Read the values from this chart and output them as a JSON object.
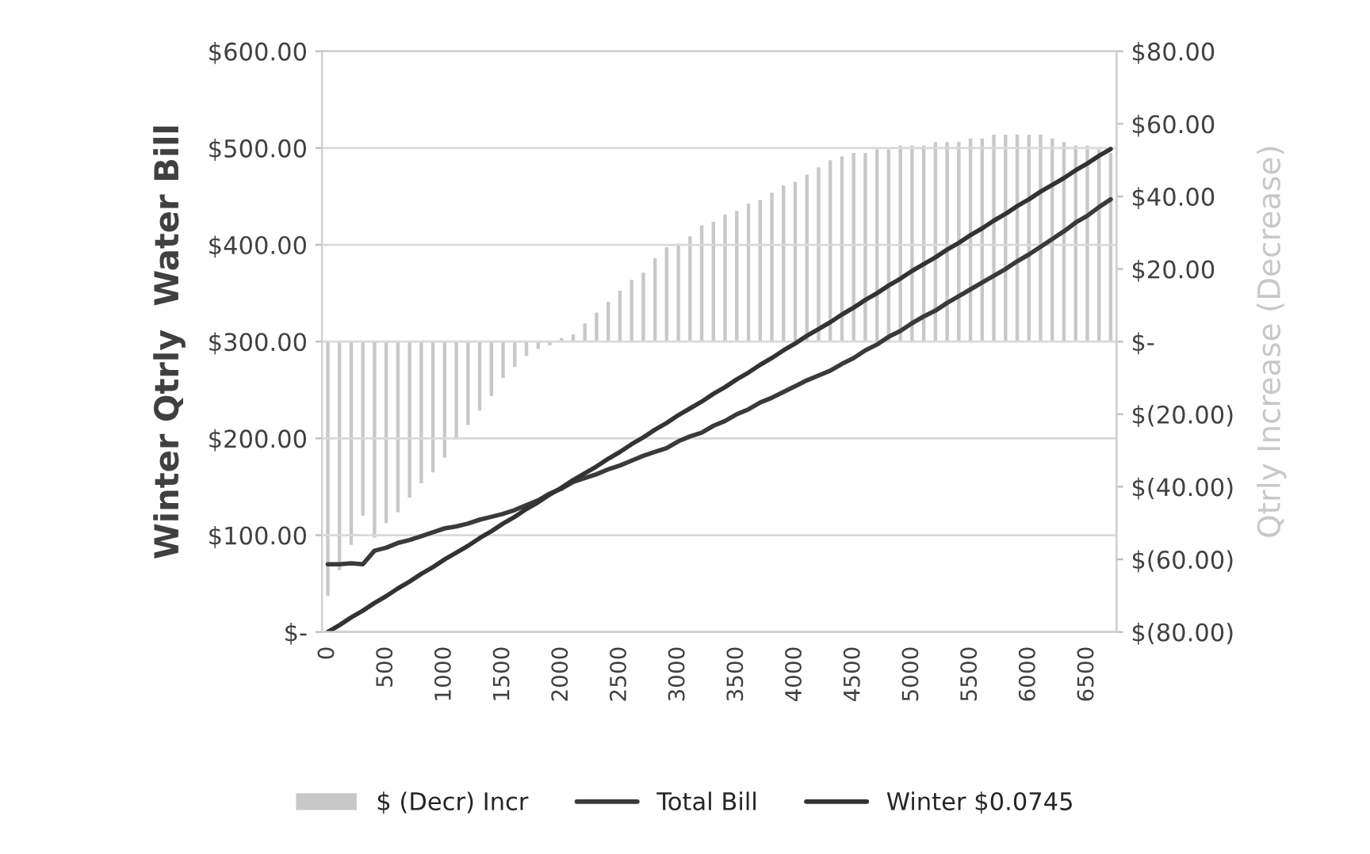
{
  "chart_data": {
    "type": "bar",
    "ylabel": "Winter Qtrly  Water Bill",
    "y2label": "Qtrly Increase (Decrease)",
    "categories": [
      "0",
      null,
      null,
      null,
      null,
      "500",
      null,
      null,
      null,
      null,
      "1000",
      null,
      null,
      null,
      null,
      "1500",
      null,
      null,
      null,
      null,
      "2000",
      null,
      null,
      null,
      null,
      "2500",
      null,
      null,
      null,
      null,
      "3000",
      null,
      null,
      null,
      null,
      "3500",
      null,
      null,
      null,
      null,
      "4000",
      null,
      null,
      null,
      null,
      "4500",
      null,
      null,
      null,
      null,
      "5000",
      null,
      null,
      null,
      null,
      "5500",
      null,
      null,
      null,
      null,
      "6000",
      null,
      null,
      null,
      null,
      "6500",
      null,
      null
    ],
    "series": [
      {
        "name": "$ (Decr) Incr",
        "axis": "y2",
        "color": "#c8c8c8",
        "values": [
          -70,
          -63,
          -56,
          -48,
          -54,
          -50,
          -47,
          -43,
          -39,
          -36,
          -32,
          -27,
          -23,
          -19,
          -15,
          -10,
          -7,
          -4,
          -2,
          -1,
          1,
          2,
          5,
          8,
          11,
          14,
          17,
          19,
          23,
          26,
          27,
          29,
          32,
          33,
          35,
          36,
          38,
          39,
          41,
          43,
          44,
          46,
          48,
          50,
          51,
          52,
          52,
          53,
          53,
          54,
          54,
          54,
          55,
          55,
          55,
          56,
          56,
          57,
          57,
          57,
          57,
          57,
          56,
          55,
          54,
          54,
          53,
          52
        ]
      },
      {
        "name": "Total Bill",
        "type": "line",
        "color": "#3a3a3a",
        "values": [
          70,
          70,
          71,
          70,
          84,
          87,
          92,
          95,
          99,
          103,
          107,
          109,
          112,
          116,
          119,
          122,
          126,
          131,
          136,
          143,
          148,
          155,
          159,
          163,
          168,
          172,
          177,
          182,
          186,
          190,
          197,
          202,
          206,
          213,
          218,
          225,
          230,
          237,
          242,
          248,
          254,
          260,
          265,
          270,
          277,
          283,
          291,
          297,
          305,
          311,
          319,
          326,
          332,
          340,
          347,
          354,
          361,
          368,
          375,
          383,
          390,
          398,
          406,
          414,
          423,
          430,
          439,
          447
        ]
      },
      {
        "name": "Winter $0.0745",
        "type": "line",
        "color": "#333333",
        "values": [
          0,
          7,
          15,
          22,
          30,
          37,
          45,
          52,
          60,
          67,
          75,
          82,
          89,
          97,
          104,
          112,
          119,
          127,
          134,
          142,
          149,
          157,
          164,
          171,
          179,
          186,
          194,
          201,
          209,
          216,
          224,
          231,
          238,
          246,
          253,
          261,
          268,
          276,
          283,
          291,
          298,
          306,
          313,
          320,
          328,
          335,
          343,
          350,
          358,
          365,
          373,
          380,
          387,
          395,
          402,
          410,
          417,
          425,
          432,
          440,
          447,
          455,
          462,
          469,
          477,
          484,
          492,
          499
        ]
      }
    ],
    "ylim": [
      0,
      600
    ],
    "yticks": [
      {
        "value": 0,
        "label": "$-"
      },
      {
        "value": 100,
        "label": "$100.00"
      },
      {
        "value": 200,
        "label": "$200.00"
      },
      {
        "value": 300,
        "label": "$300.00"
      },
      {
        "value": 400,
        "label": "$400.00"
      },
      {
        "value": 500,
        "label": "$500.00"
      },
      {
        "value": 600,
        "label": "$600.00"
      }
    ],
    "y2lim": [
      -80,
      80
    ],
    "y2ticks": [
      {
        "value": -80,
        "label": "$(80.00)"
      },
      {
        "value": -60,
        "label": "$(60.00)"
      },
      {
        "value": -40,
        "label": "$(40.00)"
      },
      {
        "value": -20,
        "label": "$(20.00)"
      },
      {
        "value": 0,
        "label": "$-"
      },
      {
        "value": 20,
        "label": "$20.00"
      },
      {
        "value": 40,
        "label": "$40.00"
      },
      {
        "value": 60,
        "label": "$60.00"
      },
      {
        "value": 80,
        "label": "$80.00"
      }
    ],
    "grid": "y",
    "legend": "bottom",
    "marker": "none",
    "line_style": "solid"
  }
}
